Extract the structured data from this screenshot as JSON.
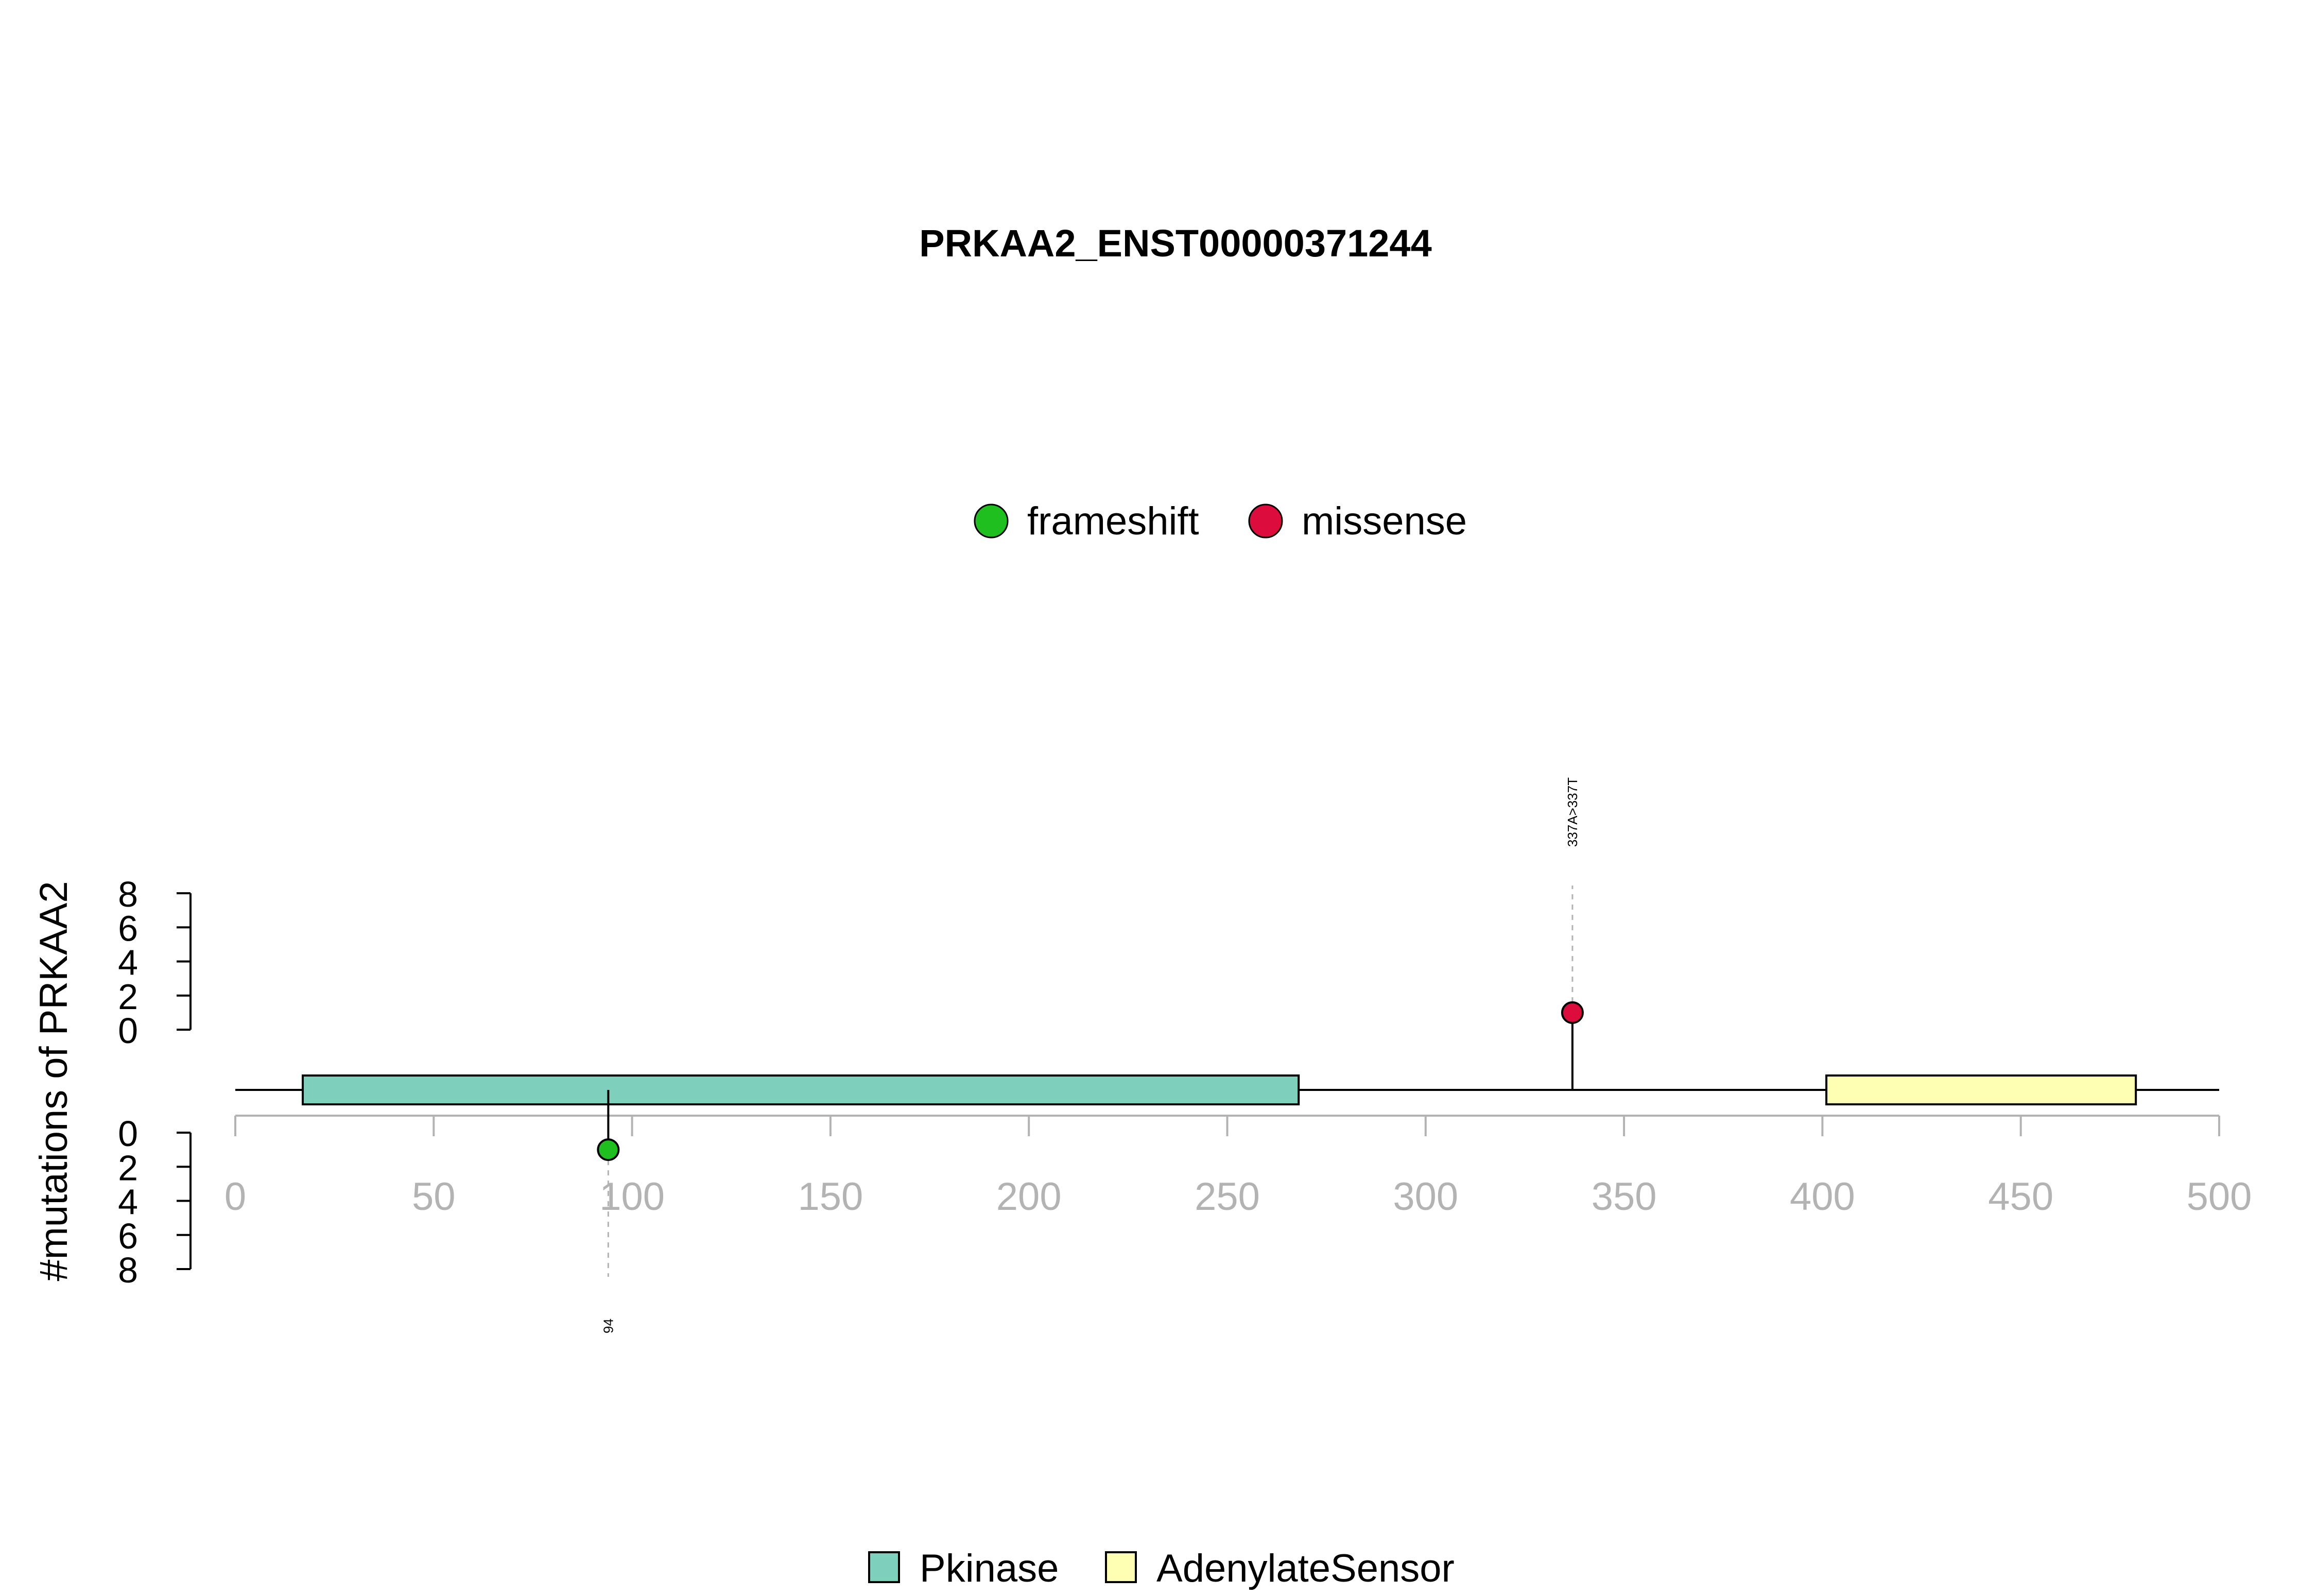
{
  "chart_data": {
    "type": "lollipop",
    "title": "PRKAA2_ENST00000371244",
    "ylabel": "#mutations of PRKAA2",
    "xlim": [
      0,
      500
    ],
    "x_ticks": [
      0,
      50,
      100,
      150,
      200,
      250,
      300,
      350,
      400,
      450,
      500
    ],
    "y_ticks_upper": [
      0,
      2,
      4,
      6,
      8
    ],
    "y_ticks_lower": [
      0,
      2,
      4,
      6,
      8
    ],
    "mutation_legend": [
      {
        "name": "frameshift",
        "color": "#1fbf1f"
      },
      {
        "name": "missense",
        "color": "#dc0d3c"
      }
    ],
    "mutations": [
      {
        "position": 94,
        "count": 1,
        "type": "frameshift",
        "label": "94",
        "side": "lower"
      },
      {
        "position": 337,
        "count": 1,
        "type": "missense",
        "label": "337A>337T",
        "side": "upper"
      }
    ],
    "domains": [
      {
        "name": "Pkinase",
        "start": 17,
        "end": 268,
        "color": "#7ecfbc"
      },
      {
        "name": "AdenylateSensor",
        "start": 401,
        "end": 479,
        "color": "#ffffb3"
      }
    ],
    "protein_length": 500
  }
}
